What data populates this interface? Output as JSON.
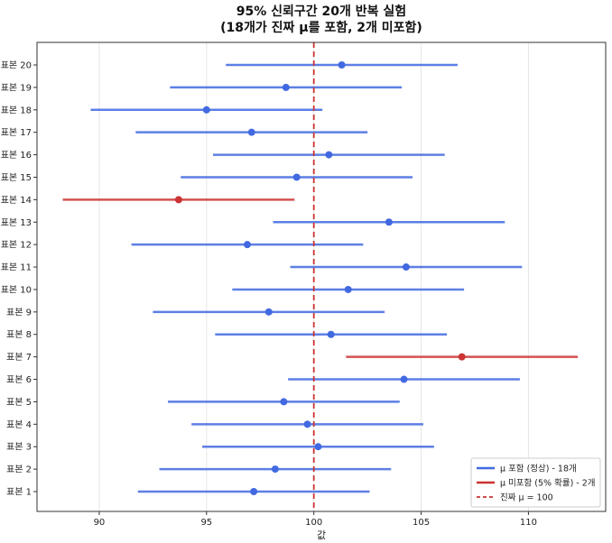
{
  "chart_data": {
    "type": "errorbar",
    "title_line1": "95% 신뢰구간 20개 반복 실험",
    "title_line2": "(18개가 진짜 μ를 포함, 2개 미포함)",
    "xlabel": "값",
    "ylabel": "",
    "xlim": [
      87.1,
      113.6
    ],
    "xticks": [
      90,
      95,
      100,
      105,
      110
    ],
    "grid": "vertical",
    "legend_position": "bottom-right",
    "true_mean": 100,
    "colors": {
      "contains": "#4169e1",
      "misses": "#cc3333",
      "true_line": "#cc3333"
    },
    "legend": [
      {
        "label": "μ 포함 (정상) - 18개",
        "style": "solid",
        "color": "#4169e1"
      },
      {
        "label": "μ 미포함 (5% 확률) - 2개",
        "style": "solid",
        "color": "#cc3333"
      },
      {
        "label": "진짜 μ = 100",
        "style": "dashed",
        "color": "#cc3333"
      }
    ],
    "samples": [
      {
        "label": "표본 1",
        "mean": 97.2,
        "lower": 91.8,
        "upper": 102.6,
        "contains": true
      },
      {
        "label": "표본 2",
        "mean": 98.2,
        "lower": 92.8,
        "upper": 103.6,
        "contains": true
      },
      {
        "label": "표본 3",
        "mean": 100.2,
        "lower": 94.8,
        "upper": 105.6,
        "contains": true
      },
      {
        "label": "표본 4",
        "mean": 99.7,
        "lower": 94.3,
        "upper": 105.1,
        "contains": true
      },
      {
        "label": "표본 5",
        "mean": 98.6,
        "lower": 93.2,
        "upper": 104.0,
        "contains": true
      },
      {
        "label": "표본 6",
        "mean": 104.2,
        "lower": 98.8,
        "upper": 109.6,
        "contains": true
      },
      {
        "label": "표본 7",
        "mean": 106.9,
        "lower": 101.5,
        "upper": 112.3,
        "contains": false
      },
      {
        "label": "표본 8",
        "mean": 100.8,
        "lower": 95.4,
        "upper": 106.2,
        "contains": true
      },
      {
        "label": "표본 9",
        "mean": 97.9,
        "lower": 92.5,
        "upper": 103.3,
        "contains": true
      },
      {
        "label": "표본 10",
        "mean": 101.6,
        "lower": 96.2,
        "upper": 107.0,
        "contains": true
      },
      {
        "label": "표본 11",
        "mean": 104.3,
        "lower": 98.9,
        "upper": 109.7,
        "contains": true
      },
      {
        "label": "표본 12",
        "mean": 96.9,
        "lower": 91.5,
        "upper": 102.3,
        "contains": true
      },
      {
        "label": "표본 13",
        "mean": 103.5,
        "lower": 98.1,
        "upper": 108.9,
        "contains": true
      },
      {
        "label": "표본 14",
        "mean": 93.7,
        "lower": 88.3,
        "upper": 99.1,
        "contains": false
      },
      {
        "label": "표본 15",
        "mean": 99.2,
        "lower": 93.8,
        "upper": 104.6,
        "contains": true
      },
      {
        "label": "표본 16",
        "mean": 100.7,
        "lower": 95.3,
        "upper": 106.1,
        "contains": true
      },
      {
        "label": "표본 17",
        "mean": 97.1,
        "lower": 91.7,
        "upper": 102.5,
        "contains": true
      },
      {
        "label": "표본 18",
        "mean": 95.0,
        "lower": 89.6,
        "upper": 100.4,
        "contains": true
      },
      {
        "label": "표본 19",
        "mean": 98.7,
        "lower": 93.3,
        "upper": 104.1,
        "contains": true
      },
      {
        "label": "표본 20",
        "mean": 101.3,
        "lower": 95.9,
        "upper": 106.7,
        "contains": true
      }
    ]
  }
}
